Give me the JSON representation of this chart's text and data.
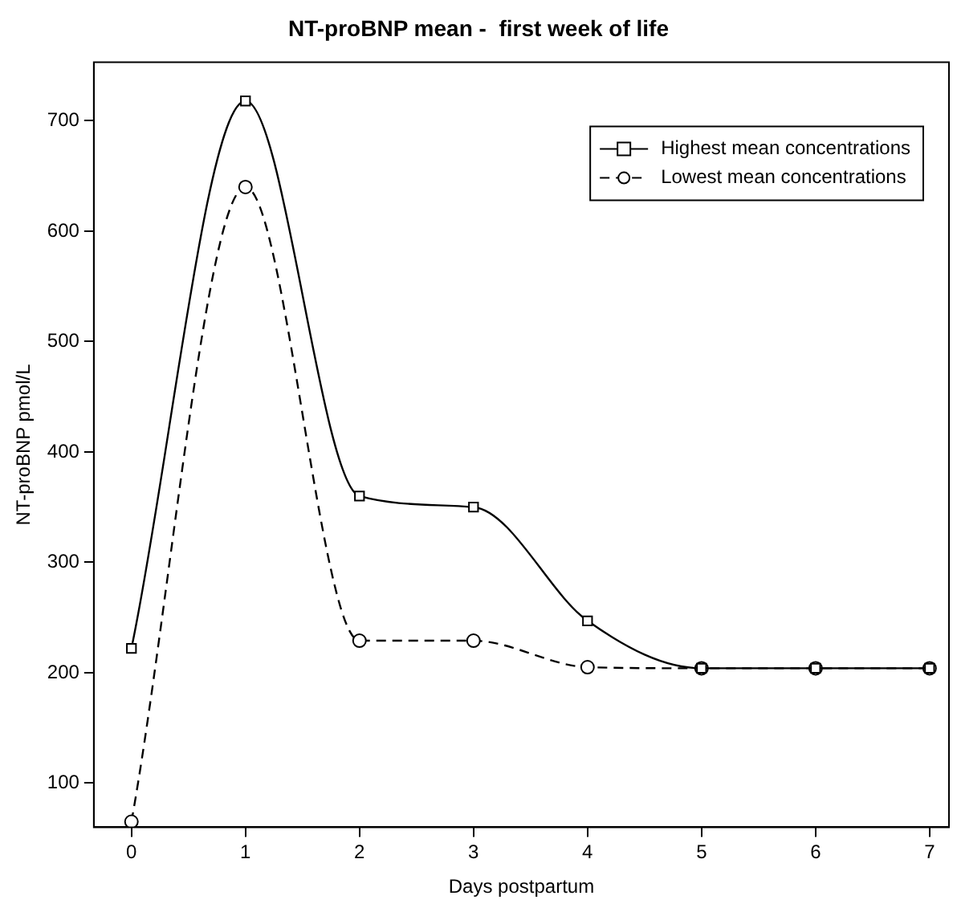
{
  "chart_data": {
    "type": "line",
    "title": "NT-proBNP mean -  first week of life",
    "xlabel": "Days postpartum",
    "ylabel": "NT-proBNP pmol/L",
    "x": [
      0,
      1,
      2,
      3,
      4,
      5,
      6,
      7
    ],
    "series": [
      {
        "name": "Highest mean concentrations",
        "color": "#000000",
        "marker": "square",
        "line_style": "solid",
        "values": [
          222,
          718,
          360,
          350,
          247,
          204,
          204,
          204
        ]
      },
      {
        "name": "Lowest mean concentrations",
        "color": "#000000",
        "marker": "circle",
        "line_style": "dashed",
        "values": [
          65,
          640,
          229,
          229,
          205,
          204,
          204,
          204
        ]
      }
    ],
    "xlim": [
      -0.33,
      7.17
    ],
    "xticks": [
      0,
      1,
      2,
      3,
      4,
      5,
      6,
      7
    ],
    "ylim": [
      60,
      753
    ],
    "yticks": [
      100,
      200,
      300,
      400,
      500,
      600,
      700
    ],
    "grid": false,
    "legend": "top right"
  }
}
